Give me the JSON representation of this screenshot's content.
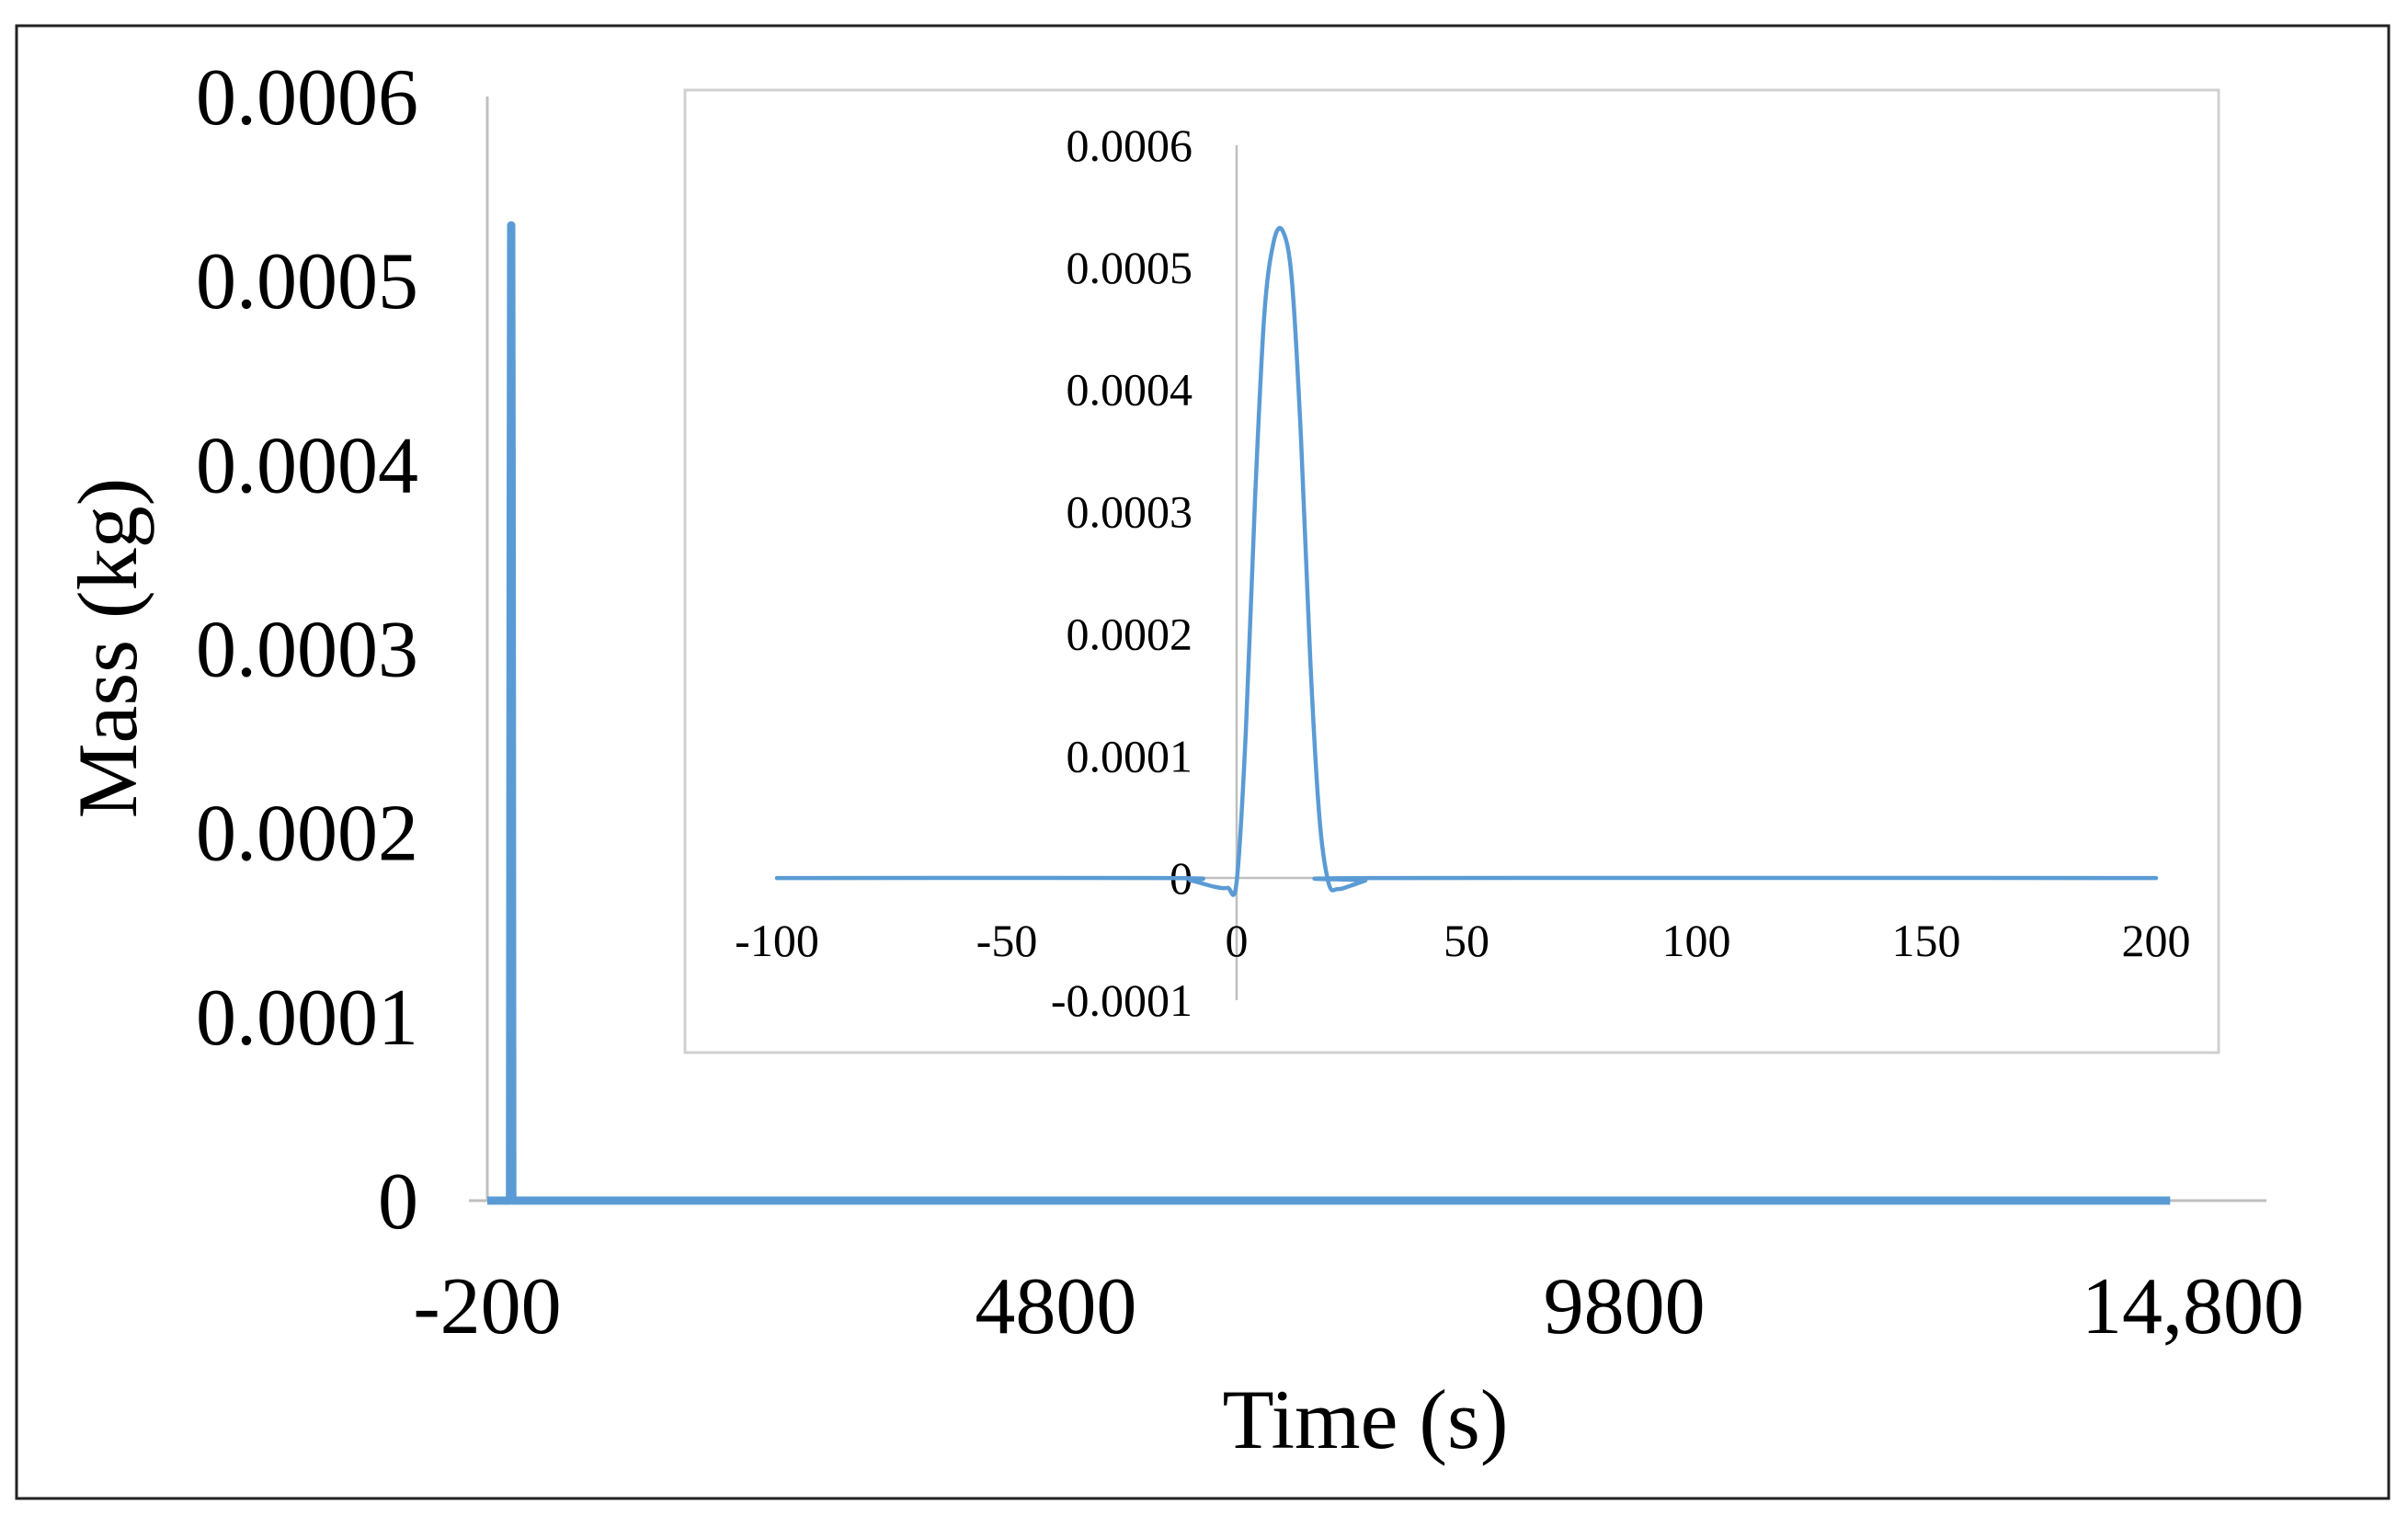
{
  "chart_data": [
    {
      "type": "line",
      "panel": "main",
      "xlabel": "Time (s)",
      "ylabel": "Mass (kg)",
      "xlim": [
        -200,
        14800
      ],
      "ylim": [
        0,
        0.0006
      ],
      "x_ticks": [
        "-200",
        "4800",
        "9800",
        "14,800"
      ],
      "y_ticks": [
        "0",
        "0.0001",
        "0.0002",
        "0.0003",
        "0.0004",
        "0.0005",
        "0.0006"
      ],
      "grid": false,
      "series": [
        {
          "color": "#5b9bd5",
          "x": [
            -200,
            -100,
            -1,
            0,
            5,
            10,
            15,
            20,
            21,
            30,
            14600
          ],
          "y": [
            0,
            0,
            0,
            5e-06,
            0.00035,
            0.00053,
            0.00035,
            5e-06,
            0,
            0,
            0
          ]
        }
      ]
    },
    {
      "type": "line",
      "panel": "inset",
      "xlim": [
        -100,
        200
      ],
      "ylim": [
        -0.0001,
        0.0006
      ],
      "x_ticks": [
        "-100",
        "-50",
        "0",
        "50",
        "100",
        "150",
        "200"
      ],
      "y_ticks": [
        "-0.0001",
        "0",
        "0.0001",
        "0.0002",
        "0.0003",
        "0.0004",
        "0.0005",
        "0.0006"
      ],
      "grid": false,
      "series": [
        {
          "color": "#5b9bd5",
          "x": [
            -100,
            -15,
            -10,
            -5,
            -2,
            0,
            2,
            4,
            6,
            8,
            10,
            12,
            14,
            16,
            18,
            20,
            22,
            25,
            28,
            30,
            200
          ],
          "y": [
            0,
            0,
            -2e-06,
            -7e-06,
            -8e-06,
            -3e-06,
            0.00012,
            0.00031,
            0.00046,
            0.00052,
            0.00053,
            0.00049,
            0.00036,
            0.00018,
            5e-05,
            -4e-06,
            -9e-06,
            -6e-06,
            -2e-06,
            0,
            0
          ]
        }
      ]
    }
  ]
}
